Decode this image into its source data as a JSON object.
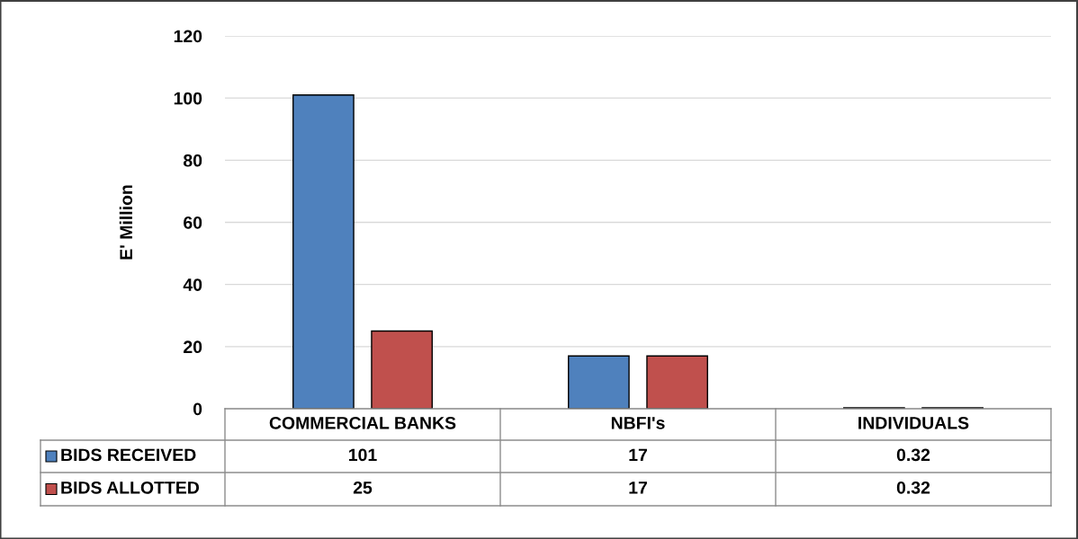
{
  "chart_data": {
    "type": "bar",
    "ylabel": "E' Million",
    "categories": [
      "COMMERCIAL BANKS",
      "NBFI's",
      "INDIVIDUALS"
    ],
    "series": [
      {
        "name": "BIDS RECEIVED",
        "color": "#4f81bd",
        "values": [
          101,
          17,
          0.32
        ]
      },
      {
        "name": "BIDS ALLOTTED",
        "color": "#c0504d",
        "values": [
          25,
          17,
          0.32
        ]
      }
    ],
    "ylim": [
      0,
      120
    ],
    "yticks": [
      0,
      20,
      40,
      60,
      80,
      100,
      120
    ],
    "grid": "y",
    "data_labels": true,
    "legend": "bottom"
  }
}
